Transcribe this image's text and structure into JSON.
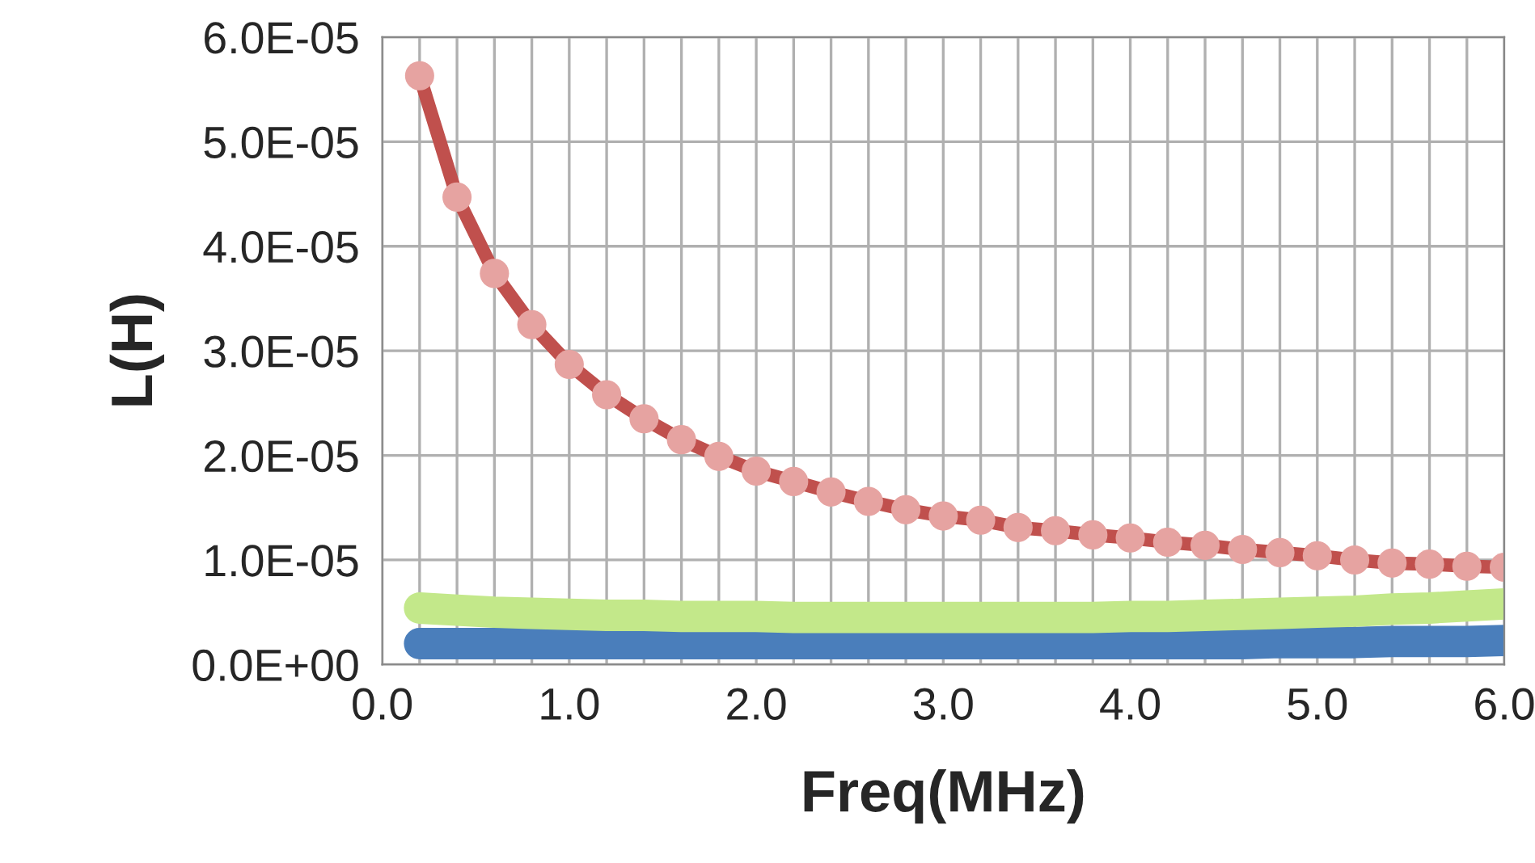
{
  "chart_data": {
    "type": "line",
    "xlabel": "Freq(MHz)",
    "ylabel": "L(H)",
    "x": [
      0.2,
      0.4,
      0.6,
      0.8,
      1.0,
      1.2,
      1.4,
      1.6,
      1.8,
      2.0,
      2.2,
      2.4,
      2.6,
      2.8,
      3.0,
      3.2,
      3.4,
      3.6,
      3.8,
      4.0,
      4.2,
      4.4,
      4.6,
      4.8,
      5.0,
      5.2,
      5.4,
      5.6,
      5.8,
      6.0
    ],
    "series": [
      {
        "color": "#4a7ebb",
        "marker": "none",
        "values": [
          2e-06,
          2e-06,
          2e-06,
          2e-06,
          2e-06,
          2e-06,
          2e-06,
          2e-06,
          2e-06,
          2e-06,
          2e-06,
          2e-06,
          2e-06,
          2e-06,
          2e-06,
          2e-06,
          2e-06,
          2e-06,
          2e-06,
          2e-06,
          2e-06,
          2e-06,
          2e-06,
          2.1e-06,
          2.1e-06,
          2.1e-06,
          2.2e-06,
          2.2e-06,
          2.2e-06,
          2.3e-06
        ]
      },
      {
        "color": "#c3e88a",
        "marker": "none",
        "values": [
          5.4e-06,
          5.2e-06,
          5e-06,
          4.9e-06,
          4.8e-06,
          4.7e-06,
          4.7e-06,
          4.6e-06,
          4.6e-06,
          4.6e-06,
          4.5e-06,
          4.5e-06,
          4.5e-06,
          4.5e-06,
          4.5e-06,
          4.5e-06,
          4.5e-06,
          4.5e-06,
          4.5e-06,
          4.6e-06,
          4.6e-06,
          4.7e-06,
          4.8e-06,
          4.9e-06,
          5e-06,
          5.1e-06,
          5.3e-06,
          5.4e-06,
          5.6e-06,
          5.8e-06
        ]
      },
      {
        "color": "#c0504d",
        "marker": "circle",
        "values": [
          5.63e-05,
          4.47e-05,
          3.74e-05,
          3.25e-05,
          2.87e-05,
          2.58e-05,
          2.35e-05,
          2.15e-05,
          1.99e-05,
          1.85e-05,
          1.75e-05,
          1.65e-05,
          1.56e-05,
          1.48e-05,
          1.42e-05,
          1.38e-05,
          1.31e-05,
          1.28e-05,
          1.24e-05,
          1.21e-05,
          1.17e-05,
          1.14e-05,
          1.1e-05,
          1.07e-05,
          1.04e-05,
          1e-05,
          9.7e-06,
          9.6e-06,
          9.4e-06,
          9.3e-06
        ]
      }
    ],
    "xlim": [
      0,
      6
    ],
    "xticks": [
      {
        "value": 0,
        "label": "0.0"
      },
      {
        "value": 0.2,
        "label": null
      },
      {
        "value": 0.4,
        "label": null
      },
      {
        "value": 0.6,
        "label": null
      },
      {
        "value": 0.8,
        "label": null
      },
      {
        "value": 1,
        "label": "1.0"
      },
      {
        "value": 1.2,
        "label": null
      },
      {
        "value": 1.4,
        "label": null
      },
      {
        "value": 1.6,
        "label": null
      },
      {
        "value": 1.8,
        "label": null
      },
      {
        "value": 2,
        "label": "2.0"
      },
      {
        "value": 2.2,
        "label": null
      },
      {
        "value": 2.4,
        "label": null
      },
      {
        "value": 2.6,
        "label": null
      },
      {
        "value": 2.8,
        "label": null
      },
      {
        "value": 3,
        "label": "3.0"
      },
      {
        "value": 3.2,
        "label": null
      },
      {
        "value": 3.4,
        "label": null
      },
      {
        "value": 3.6,
        "label": null
      },
      {
        "value": 3.8,
        "label": null
      },
      {
        "value": 4,
        "label": "4.0"
      },
      {
        "value": 4.2,
        "label": null
      },
      {
        "value": 4.4,
        "label": null
      },
      {
        "value": 4.6,
        "label": null
      },
      {
        "value": 4.8,
        "label": null
      },
      {
        "value": 5,
        "label": "5.0"
      },
      {
        "value": 5.2,
        "label": null
      },
      {
        "value": 5.4,
        "label": null
      },
      {
        "value": 5.6,
        "label": null
      },
      {
        "value": 5.8,
        "label": null
      },
      {
        "value": 6,
        "label": "6.0"
      }
    ],
    "ylim": [
      0,
      6e-05
    ],
    "yticks": [
      {
        "value": 0,
        "label": "0.0E+00"
      },
      {
        "value": 1e-05,
        "label": "1.0E-05"
      },
      {
        "value": 2e-05,
        "label": "2.0E-05"
      },
      {
        "value": 3e-05,
        "label": "3.0E-05"
      },
      {
        "value": 4e-05,
        "label": "4.0E-05"
      },
      {
        "value": 5e-05,
        "label": "5.0E-05"
      },
      {
        "value": 6e-05,
        "label": "6.0E-05"
      }
    ],
    "grid": true,
    "legend": false,
    "line_style": "solid"
  }
}
